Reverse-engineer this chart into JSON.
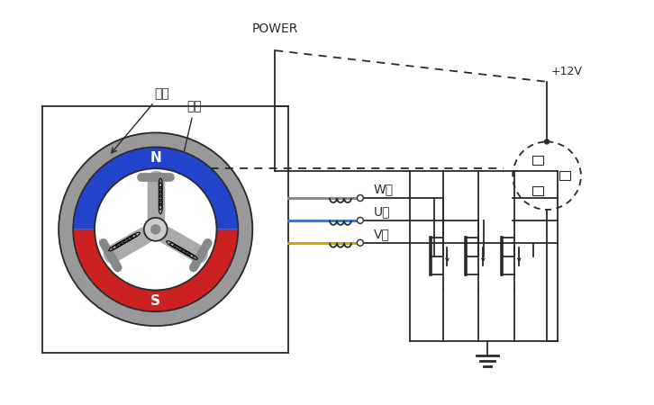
{
  "bg_color": "#ffffff",
  "line_color": "#2a2a2a",
  "red_color": "#cc2222",
  "blue_color": "#2244cc",
  "gray_ring": "#aaaaaa",
  "gray_stator": "#999999",
  "wire_W": "#888888",
  "wire_U": "#4477bb",
  "wire_V": "#ccaa00",
  "label_转子": "转子",
  "label_定子": "定子",
  "label_N": "N",
  "label_S": "S",
  "label_POWER": "POWER",
  "label_12V": "+12V",
  "label_W": "W相",
  "label_U": "U相",
  "label_V": "V相"
}
